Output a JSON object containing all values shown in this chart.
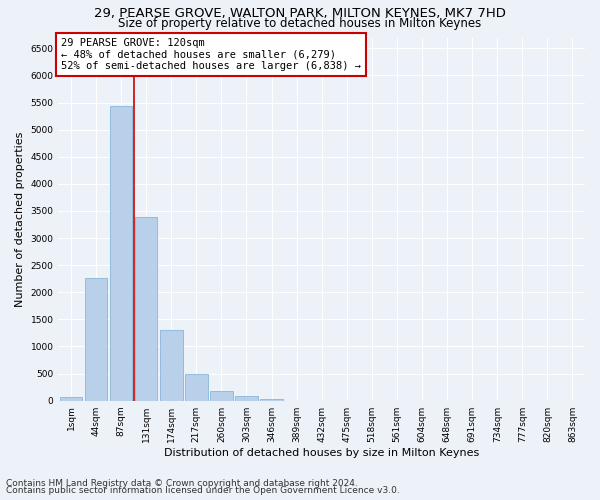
{
  "title_line1": "29, PEARSE GROVE, WALTON PARK, MILTON KEYNES, MK7 7HD",
  "title_line2": "Size of property relative to detached houses in Milton Keynes",
  "xlabel": "Distribution of detached houses by size in Milton Keynes",
  "ylabel": "Number of detached properties",
  "footer_line1": "Contains HM Land Registry data © Crown copyright and database right 2024.",
  "footer_line2": "Contains public sector information licensed under the Open Government Licence v3.0.",
  "annotation_title": "29 PEARSE GROVE: 120sqm",
  "annotation_line1": "← 48% of detached houses are smaller (6,279)",
  "annotation_line2": "52% of semi-detached houses are larger (6,838) →",
  "red_line_x": 2.5,
  "bar_categories": [
    "1sqm",
    "44sqm",
    "87sqm",
    "131sqm",
    "174sqm",
    "217sqm",
    "260sqm",
    "303sqm",
    "346sqm",
    "389sqm",
    "432sqm",
    "475sqm",
    "518sqm",
    "561sqm",
    "604sqm",
    "648sqm",
    "691sqm",
    "734sqm",
    "777sqm",
    "820sqm",
    "863sqm"
  ],
  "bar_values": [
    75,
    2270,
    5430,
    3380,
    1300,
    490,
    185,
    80,
    40,
    0,
    0,
    0,
    0,
    0,
    0,
    0,
    0,
    0,
    0,
    0,
    0
  ],
  "bar_color": "#b8d0ea",
  "bar_edgecolor": "#7aadd4",
  "ylim": [
    0,
    6700
  ],
  "yticks": [
    0,
    500,
    1000,
    1500,
    2000,
    2500,
    3000,
    3500,
    4000,
    4500,
    5000,
    5500,
    6000,
    6500
  ],
  "bg_color": "#edf1f8",
  "grid_color": "#ffffff",
  "annotation_box_edgecolor": "#cc0000",
  "red_line_color": "#cc0000",
  "title_fontsize": 9.5,
  "subtitle_fontsize": 8.5,
  "axis_label_fontsize": 8,
  "tick_fontsize": 6.5,
  "annotation_fontsize": 7.5,
  "footer_fontsize": 6.5
}
